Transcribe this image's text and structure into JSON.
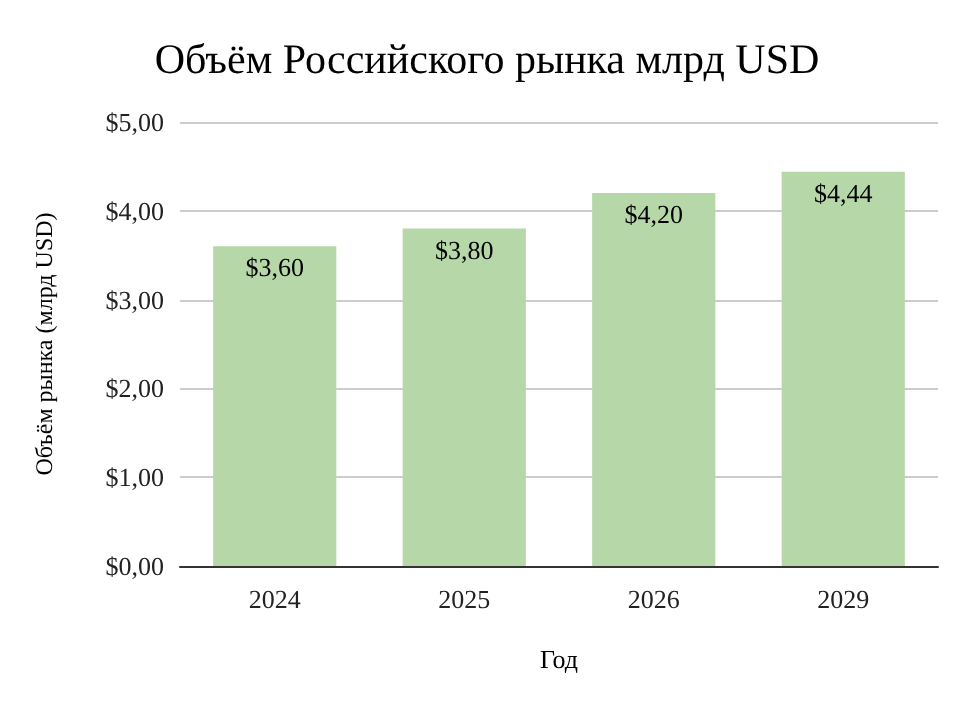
{
  "chart_data": {
    "type": "bar",
    "title": "Объём Российского рынка млрд USD",
    "xlabel": "Год",
    "ylabel": "Объём рынка (млрд USD)",
    "categories": [
      "2024",
      "2025",
      "2026",
      "2029"
    ],
    "values": [
      3.6,
      3.8,
      4.2,
      4.44
    ],
    "value_labels": [
      "$3,60",
      "$3,80",
      "$4,20",
      "$4,44"
    ],
    "color": "#b6d7a8",
    "ylim": [
      0,
      5
    ],
    "yticks": [
      {
        "value": 0,
        "label": "$0,00"
      },
      {
        "value": 1,
        "label": "$1,00"
      },
      {
        "value": 2,
        "label": "$2,00"
      },
      {
        "value": 3,
        "label": "$3,00"
      },
      {
        "value": 4,
        "label": "$4,00"
      },
      {
        "value": 5,
        "label": "$5,00"
      }
    ],
    "grid": true
  }
}
